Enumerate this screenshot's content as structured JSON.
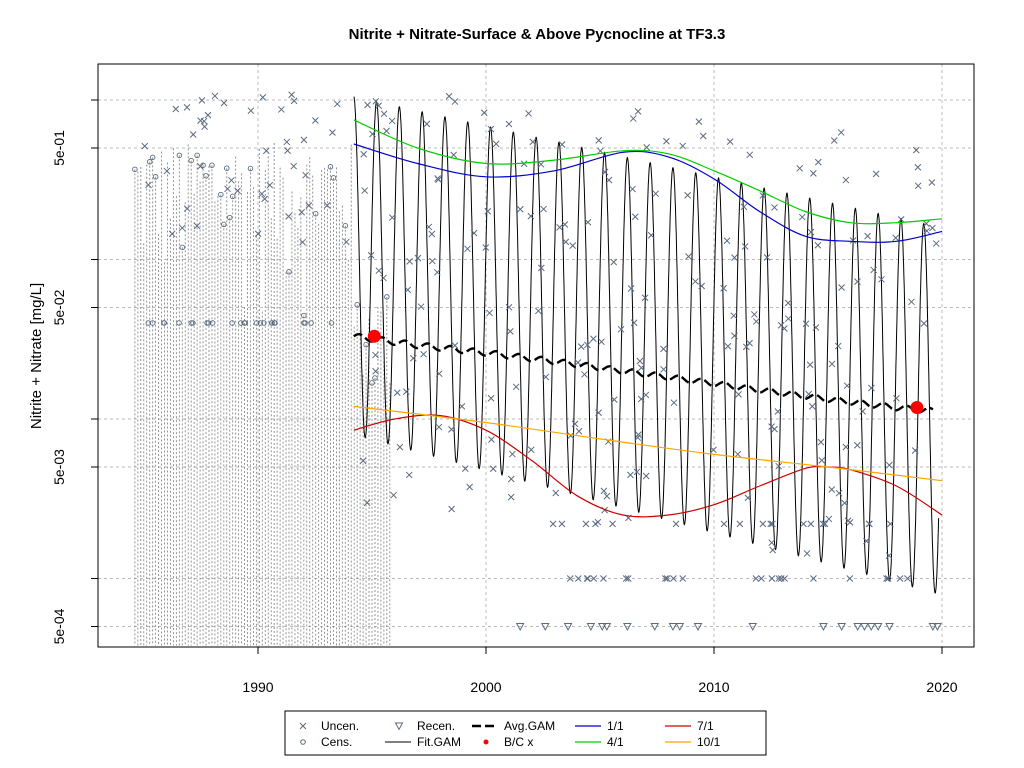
{
  "chart_data": {
    "type": "line",
    "title": "Nitrite + Nitrate-Surface & Above Pycnocline at TF3.3",
    "xlabel": "",
    "ylabel": "Nitrite + Nitrate [mg/L]",
    "y_scale": "log",
    "xlim": [
      1984,
      2021
    ],
    "ylim": [
      0.0003,
      1.4
    ],
    "x_ticks": [
      "1990",
      "2000",
      "2010",
      "2020"
    ],
    "y_ticks": [
      "5e-04",
      "5e-03",
      "5e-02",
      "5e-01"
    ],
    "grid": true,
    "legend_position": "bottom",
    "legend": [
      {
        "label": "Uncen.",
        "symbol": "x-marker"
      },
      {
        "label": "Cens.",
        "symbol": "circle-marker"
      },
      {
        "label": "Recen.",
        "symbol": "triangle-marker"
      },
      {
        "label": "Fit.GAM",
        "symbol": "solid-line"
      },
      {
        "label": "Avg.GAM",
        "symbol": "dashed-line"
      },
      {
        "label": "B/C x",
        "symbol": "red-dot"
      },
      {
        "label": "1/1",
        "symbol": "blue-line"
      },
      {
        "label": "4/1",
        "symbol": "green-line"
      },
      {
        "label": "7/1",
        "symbol": "red-line"
      },
      {
        "label": "10/1",
        "symbol": "orange-line"
      }
    ],
    "colors": {
      "points": "#5a6b80",
      "fit": "#000000",
      "avg": "#000000",
      "bc": "#ff0000",
      "s1_1": "#0000cd",
      "s4_1": "#00cd00",
      "s7_1": "#cd0000",
      "s10_1": "#ffa500",
      "grid": "#bbbbbb"
    },
    "series": [
      {
        "name": "1/1",
        "x": [
          1994.2,
          1997,
          2000,
          2003,
          2006,
          2008,
          2010,
          2012,
          2014,
          2016,
          2018,
          2020
        ],
        "y": [
          0.53,
          0.4,
          0.33,
          0.36,
          0.47,
          0.44,
          0.32,
          0.2,
          0.14,
          0.13,
          0.13,
          0.15
        ]
      },
      {
        "name": "4/1",
        "x": [
          1994.2,
          1997,
          2000,
          2003,
          2006,
          2008,
          2010,
          2012,
          2014,
          2016,
          2018,
          2020
        ],
        "y": [
          0.75,
          0.5,
          0.4,
          0.42,
          0.48,
          0.46,
          0.36,
          0.27,
          0.2,
          0.17,
          0.17,
          0.18
        ]
      },
      {
        "name": "7/1",
        "x": [
          1994.2,
          1996,
          1998,
          2000,
          2002,
          2004,
          2006,
          2008,
          2010,
          2012,
          2014,
          2015,
          2016,
          2018,
          2020
        ],
        "y": [
          0.0085,
          0.01,
          0.0105,
          0.0085,
          0.0055,
          0.0033,
          0.0025,
          0.0025,
          0.0029,
          0.0038,
          0.0049,
          0.005,
          0.0048,
          0.0038,
          0.0025
        ]
      },
      {
        "name": "10/1",
        "x": [
          1994.2,
          2000,
          2005,
          2010,
          2015,
          2020
        ],
        "y": [
          0.012,
          0.0095,
          0.0075,
          0.006,
          0.005,
          0.0041
        ]
      },
      {
        "name": "Avg.GAM",
        "x": [
          1994.2,
          1997,
          2000,
          2003,
          2006,
          2009,
          2012,
          2015,
          2018,
          2019.6
        ],
        "y": [
          0.033,
          0.029,
          0.026,
          0.023,
          0.02,
          0.0175,
          0.0152,
          0.0133,
          0.0118,
          0.0112
        ]
      },
      {
        "name": "B/C x",
        "x": [
          1995.1,
          2018.9
        ],
        "y": [
          0.033,
          0.0118
        ]
      }
    ],
    "fit_gam": {
      "start": 1994.2,
      "end": 2019.85,
      "peak_start": 1.05,
      "peak_end": 0.16,
      "trough_start": 0.008,
      "trough_end": 0.0008
    }
  }
}
